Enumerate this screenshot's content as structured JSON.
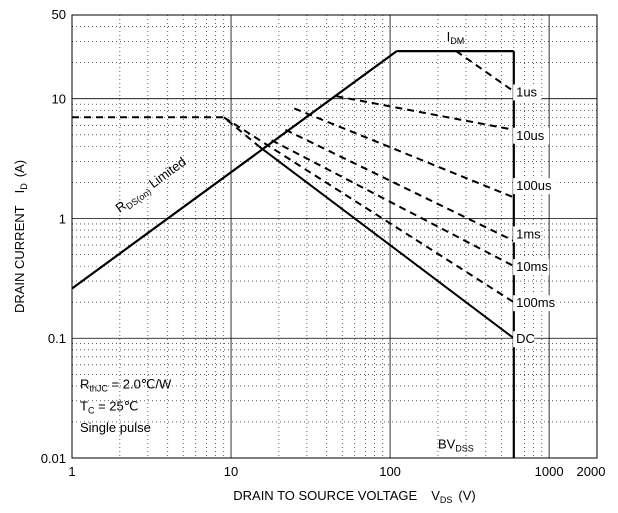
{
  "chart_data": {
    "type": "line",
    "x_scale": "log",
    "y_scale": "log",
    "xlim": [
      1,
      2000
    ],
    "ylim": [
      0.01,
      50
    ],
    "grid": true,
    "x_ticks": [
      {
        "value": 1,
        "label": "1"
      },
      {
        "value": 10,
        "label": "10"
      },
      {
        "value": 100,
        "label": "100"
      },
      {
        "value": 1000,
        "label": "1000"
      },
      {
        "value": 2000,
        "label": "2000"
      }
    ],
    "y_ticks": [
      {
        "value": 0.01,
        "label": "0.01"
      },
      {
        "value": 0.1,
        "label": "0.1"
      },
      {
        "value": 1,
        "label": "1"
      },
      {
        "value": 10,
        "label": "10"
      },
      {
        "value": 50,
        "label": "50"
      }
    ],
    "xlabel": {
      "main": "DRAIN TO SOURCE VOLTAGE",
      "symbol": "V",
      "sub": "DS",
      "unit": "(V)"
    },
    "ylabel": {
      "main": "DRAIN CURRENT",
      "symbol": "I",
      "sub": "D",
      "unit": "(A)"
    },
    "boundaries": [
      {
        "id": "rds-on",
        "style": "solid",
        "x": [
          1,
          110
        ],
        "y": [
          0.26,
          25
        ]
      },
      {
        "id": "idm",
        "style": "solid",
        "x": [
          110,
          600
        ],
        "y": [
          25,
          25
        ]
      },
      {
        "id": "bvdss",
        "style": "solid",
        "x": [
          600,
          600
        ],
        "y": [
          25,
          0.01
        ]
      }
    ],
    "series": [
      {
        "name": "1us",
        "style": "dashed",
        "x": [
          260,
          600
        ],
        "y": [
          25,
          11.5
        ]
      },
      {
        "name": "10us",
        "style": "dashed",
        "x": [
          46,
          600
        ],
        "y": [
          10.5,
          5.5
        ]
      },
      {
        "name": "100us",
        "style": "dashed",
        "x": [
          25,
          600
        ],
        "y": [
          8.3,
          1.5
        ]
      },
      {
        "name": "1ms",
        "style": "dashed",
        "x": [
          22,
          600
        ],
        "y": [
          5.5,
          0.65
        ]
      },
      {
        "name": "10ms",
        "style": "dashed",
        "x": [
          18,
          600
        ],
        "y": [
          4.5,
          0.4
        ]
      },
      {
        "name": "100ms",
        "style": "dashed",
        "x": [
          9,
          600
        ],
        "y": [
          7,
          0.2
        ]
      },
      {
        "name": "DC",
        "style": "solid",
        "x": [
          15,
          600
        ],
        "y": [
          4,
          0.1
        ]
      }
    ],
    "dc_dashed_ext": {
      "x": [
        1,
        9,
        15
      ],
      "y": [
        7,
        7,
        4
      ]
    },
    "curve_labels": [
      {
        "text": "1us",
        "x": 620,
        "y": 11.5
      },
      {
        "text": "10us",
        "x": 620,
        "y": 5.0
      },
      {
        "text": "100us",
        "x": 620,
        "y": 1.9
      },
      {
        "text": "1ms",
        "x": 620,
        "y": 0.75
      },
      {
        "text": "10ms",
        "x": 620,
        "y": 0.4
      },
      {
        "text": "100ms",
        "x": 620,
        "y": 0.2
      },
      {
        "text": "DC",
        "x": 620,
        "y": 0.1
      }
    ],
    "annotations": {
      "rds_main": "R",
      "rds_sub": "DS(on)",
      "rds_tail": " Limited",
      "idm_main": "I",
      "idm_sub": "DM",
      "bvdss_main": "BV",
      "bvdss_sub": "DSS",
      "rthjc_main": "R",
      "rthjc_sub": "thJC",
      "rthjc_tail": " = 2.0℃/W",
      "tc_main": "T",
      "tc_sub": "C",
      "tc_tail": " = 25℃",
      "pulse": "Single pulse"
    }
  }
}
